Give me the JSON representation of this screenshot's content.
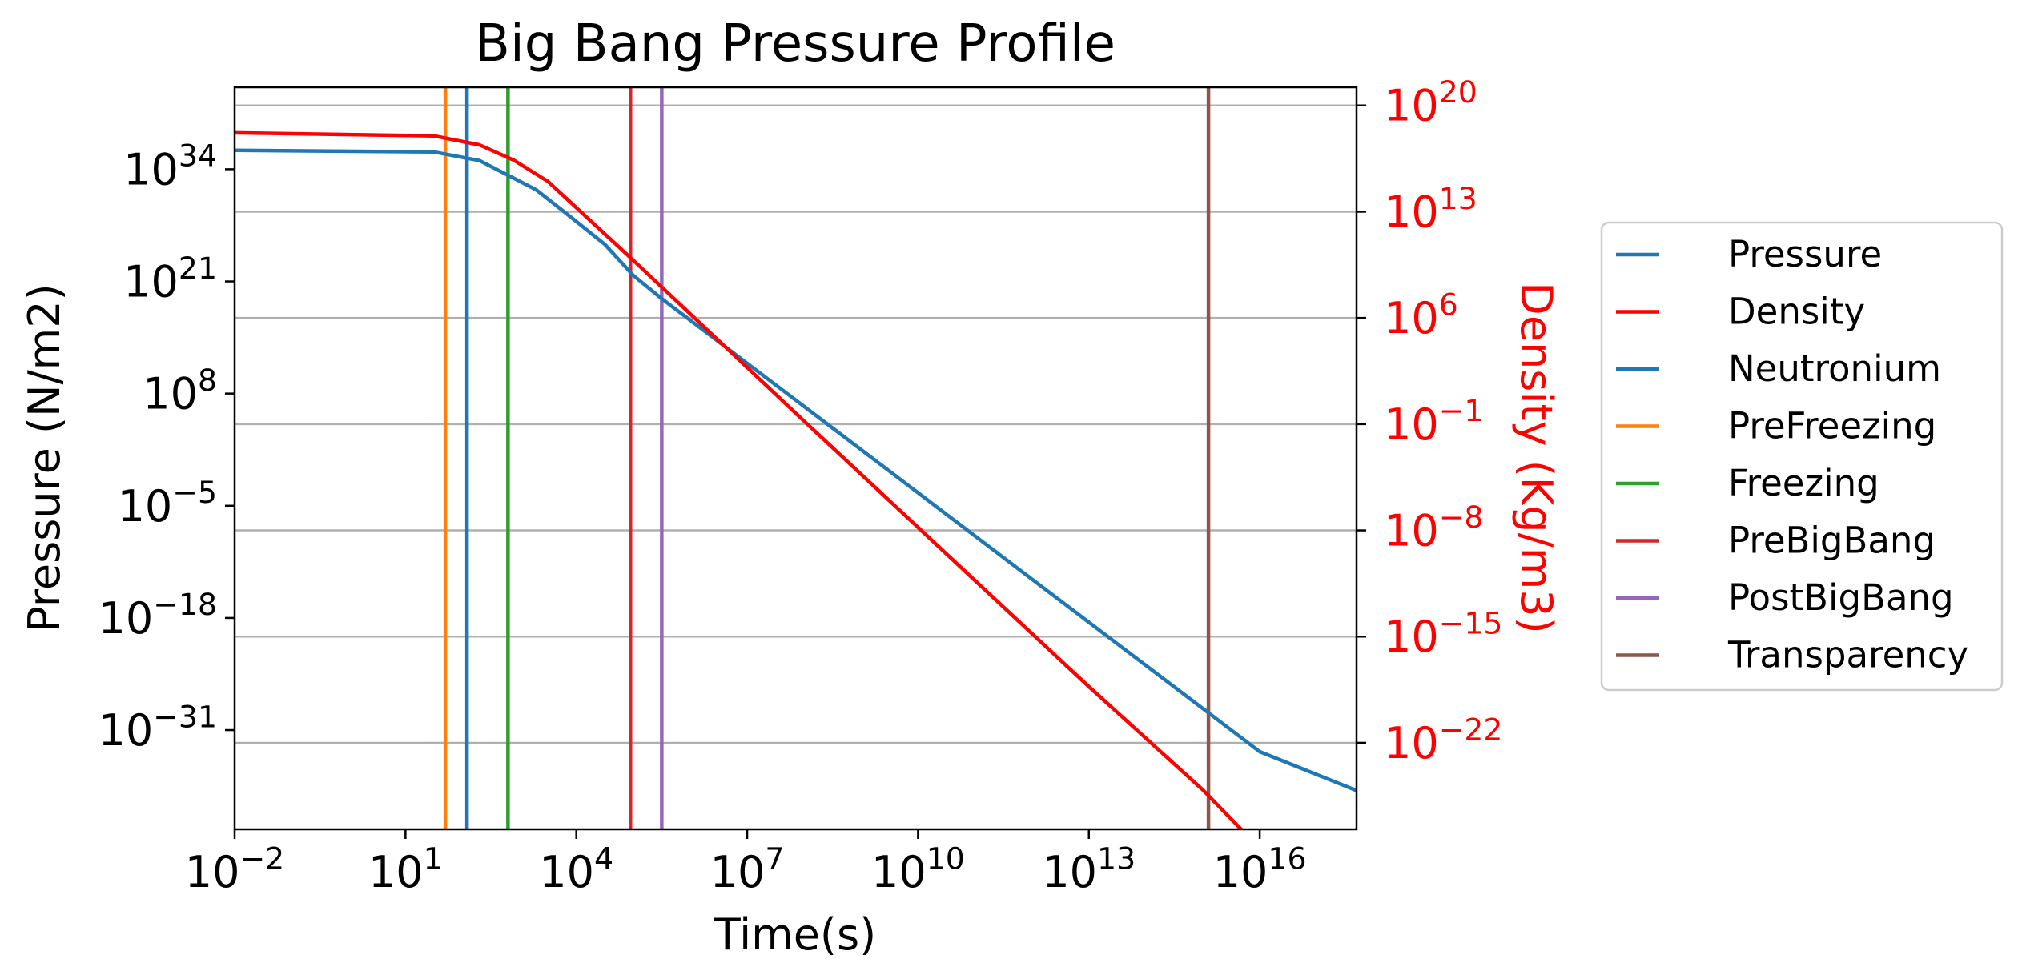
{
  "chart_data": {
    "type": "line",
    "title": "Big Bang Pressure Profile",
    "xlabel": "Time(s)",
    "ylabel": "Pressure (N/m2)",
    "y2label": "Density (Kg/m3)",
    "xscale": "log",
    "yscale": "log",
    "y2scale": "log",
    "xlim_exp": [
      -2,
      17.7
    ],
    "ylim_exp": [
      -42.5,
      43.5
    ],
    "y2lim_exp": [
      -27.7,
      21.2
    ],
    "x_ticks": [
      {
        "base": "10",
        "exp": "−2",
        "value_exp": -2
      },
      {
        "base": "10",
        "exp": "1",
        "value_exp": 1
      },
      {
        "base": "10",
        "exp": "4",
        "value_exp": 4
      },
      {
        "base": "10",
        "exp": "7",
        "value_exp": 7
      },
      {
        "base": "10",
        "exp": "10",
        "value_exp": 10
      },
      {
        "base": "10",
        "exp": "13",
        "value_exp": 13
      },
      {
        "base": "10",
        "exp": "16",
        "value_exp": 16
      }
    ],
    "y_ticks": [
      {
        "base": "10",
        "exp": "34",
        "value_exp": 34
      },
      {
        "base": "10",
        "exp": "21",
        "value_exp": 21
      },
      {
        "base": "10",
        "exp": "8",
        "value_exp": 8
      },
      {
        "base": "10",
        "exp": "−5",
        "value_exp": -5
      },
      {
        "base": "10",
        "exp": "−18",
        "value_exp": -18
      },
      {
        "base": "10",
        "exp": "−31",
        "value_exp": -31
      }
    ],
    "y2_ticks": [
      {
        "base": "10",
        "exp": "20",
        "value_exp": 20
      },
      {
        "base": "10",
        "exp": "13",
        "value_exp": 13
      },
      {
        "base": "10",
        "exp": "6",
        "value_exp": 6
      },
      {
        "base": "10",
        "exp": "−1",
        "value_exp": -1
      },
      {
        "base": "10",
        "exp": "−8",
        "value_exp": -8
      },
      {
        "base": "10",
        "exp": "−15",
        "value_exp": -15
      },
      {
        "base": "10",
        "exp": "−22",
        "value_exp": -22
      }
    ],
    "grid": "horizontal lines at secondary axis ticks",
    "legend_position": "outside-right",
    "series": [
      {
        "name": "Pressure",
        "axis": "left",
        "color": "#1f77b4",
        "x_exp": [
          -2,
          1.5,
          2.3,
          2.8,
          3.3,
          3.8,
          4.5,
          5.0,
          5.5,
          8,
          10,
          12,
          14,
          15,
          16,
          17.7
        ],
        "y_exp": [
          36.2,
          36.0,
          35.0,
          33.3,
          31.6,
          29.0,
          25.3,
          21.7,
          19.0,
          6.5,
          -3.5,
          -13.5,
          -23.5,
          -28.5,
          -33.5,
          -38.0
        ]
      },
      {
        "name": "Density",
        "axis": "right",
        "color": "#ff0000",
        "x_exp": [
          -2,
          1.5,
          2.3,
          2.9,
          3.5,
          5.0,
          8,
          10,
          13,
          15,
          17.7
        ],
        "y_exp": [
          18.2,
          18.0,
          17.4,
          16.4,
          15.0,
          9.8,
          -0.8,
          -7.8,
          -18.3,
          -25.1,
          -35.5
        ]
      }
    ],
    "markers": [
      {
        "name": "Neutronium",
        "color": "#1f77b4",
        "x_exp": 2.08
      },
      {
        "name": "PreFreezing",
        "color": "#ff7f0e",
        "x_exp": 1.7
      },
      {
        "name": "Freezing",
        "color": "#2ca02c",
        "x_exp": 2.8
      },
      {
        "name": "PreBigBang",
        "color": "#d62728",
        "x_exp": 4.95
      },
      {
        "name": "PostBigBang",
        "color": "#9467bd",
        "x_exp": 5.5
      },
      {
        "name": "Transparency",
        "color": "#8c564b",
        "x_exp": 15.1
      }
    ],
    "legend": [
      {
        "label": "Pressure",
        "color": "#1f77b4"
      },
      {
        "label": "Density",
        "color": "#ff0000"
      },
      {
        "label": "Neutronium",
        "color": "#1f77b4"
      },
      {
        "label": "PreFreezing",
        "color": "#ff7f0e"
      },
      {
        "label": "Freezing",
        "color": "#2ca02c"
      },
      {
        "label": "PreBigBang",
        "color": "#d62728"
      },
      {
        "label": "PostBigBang",
        "color": "#9467bd"
      },
      {
        "label": "Transparency",
        "color": "#8c564b"
      }
    ],
    "colors": {
      "axis": "#000000",
      "secondary_axis_text": "#ff0000",
      "grid": "#b0b0b0"
    }
  }
}
